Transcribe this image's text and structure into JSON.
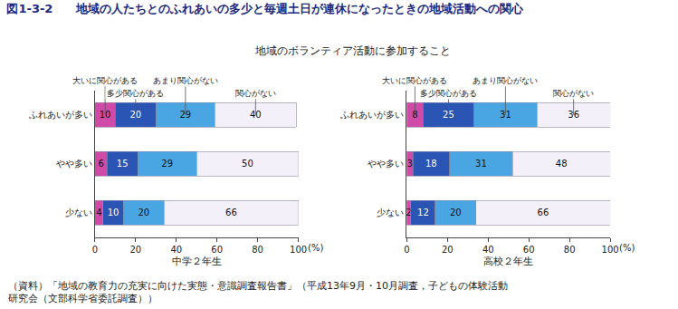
{
  "title": "図1-3-2　　地域の人たちとのふれあいの多少と毎週土日が連休になったときの地域活動への関心",
  "subtitle": "地域のボランティア活動に参加すること",
  "source": [
    "（資料）「地域の教育力の充実に向けた実態・意識調査報告書」（平成13年9月・10月調査，子どもの体験活動",
    "研究会（文部科学省委託調査））"
  ],
  "chart_data": [
    {
      "type": "bar",
      "orientation": "horizontal",
      "stacked": true,
      "data_labels": true,
      "grid": false,
      "xlabel": "中学２年生",
      "categories": [
        "ふれあいが多い",
        "やや多い",
        "少ない"
      ],
      "series": [
        {
          "name": "大いに関心がある",
          "color": "#d04aa8",
          "values": [
            10,
            6,
            4
          ]
        },
        {
          "name": "多少関心がある",
          "color": "#2a55b5",
          "values": [
            20,
            15,
            10
          ]
        },
        {
          "name": "あまり関心がない",
          "color": "#4aa6e2",
          "values": [
            29,
            29,
            20
          ]
        },
        {
          "name": "関心がない",
          "color": "#f3f0fa",
          "values": [
            40,
            50,
            66
          ]
        }
      ],
      "xlim": [
        0,
        100
      ],
      "xticks": [
        0,
        20,
        40,
        60,
        80,
        100
      ],
      "annotations": [
        "(%)"
      ]
    },
    {
      "type": "bar",
      "orientation": "horizontal",
      "stacked": true,
      "data_labels": true,
      "grid": false,
      "xlabel": "高校２年生",
      "categories": [
        "ふれあいが多い",
        "やや多い",
        "少ない"
      ],
      "series": [
        {
          "name": "大いに関心がある",
          "color": "#d04aa8",
          "values": [
            8,
            3,
            2
          ]
        },
        {
          "name": "多少関心がある",
          "color": "#2a55b5",
          "values": [
            25,
            18,
            12
          ]
        },
        {
          "name": "あまり関心がない",
          "color": "#4aa6e2",
          "values": [
            31,
            31,
            20
          ]
        },
        {
          "name": "関心がない",
          "color": "#f3f0fa",
          "values": [
            36,
            48,
            66
          ]
        }
      ],
      "xlim": [
        0,
        100
      ],
      "xticks": [
        0,
        20,
        40,
        60,
        80,
        100
      ],
      "annotations": [
        "(%)"
      ]
    }
  ]
}
